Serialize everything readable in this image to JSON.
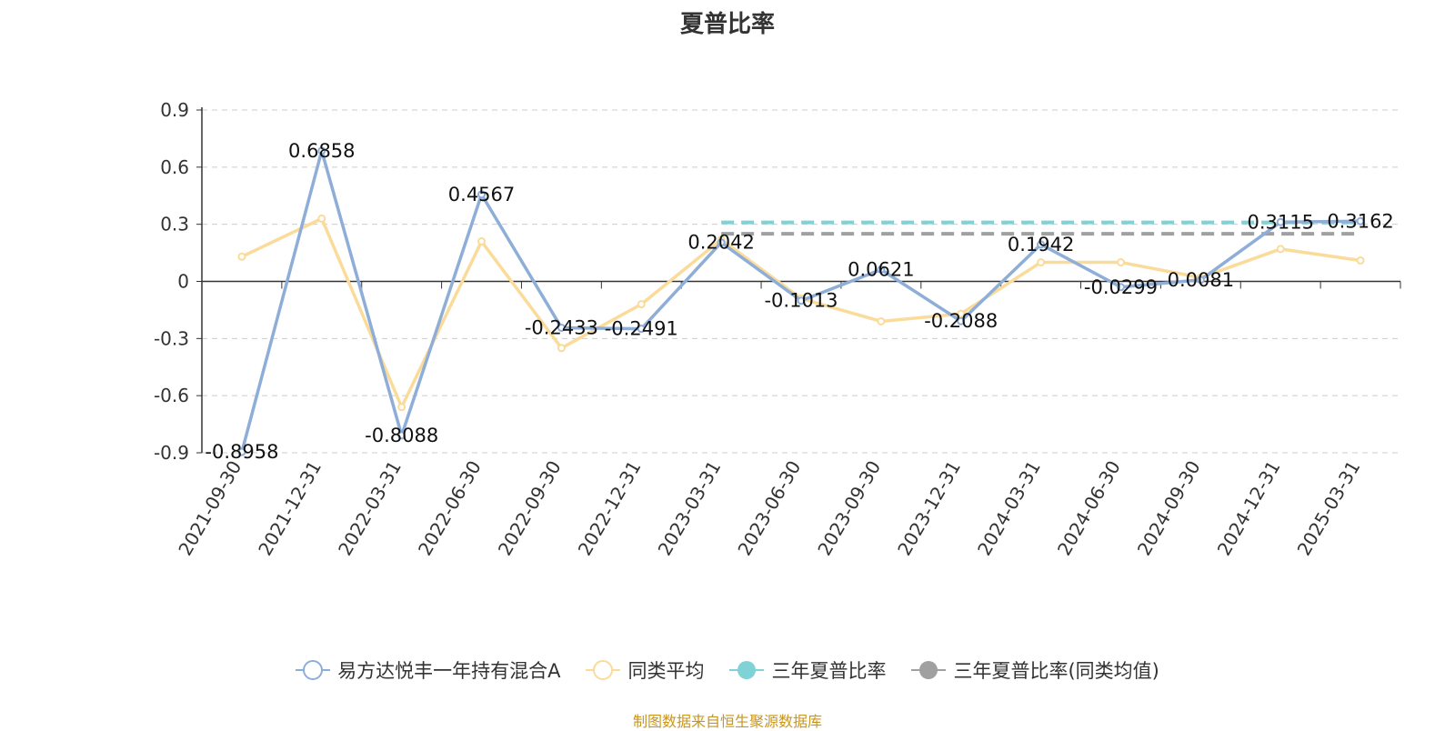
{
  "chart_data": {
    "type": "line",
    "title": "夏普比率",
    "x": [
      "2021-09-30",
      "2021-12-31",
      "2022-03-31",
      "2022-06-30",
      "2022-09-30",
      "2022-12-31",
      "2023-03-31",
      "2023-06-30",
      "2023-09-30",
      "2023-12-31",
      "2024-03-31",
      "2024-06-30",
      "2024-09-30",
      "2024-12-31",
      "2025-03-31"
    ],
    "ylim": [
      -0.9,
      0.9
    ],
    "yticks": [
      "0.9",
      "0.6",
      "0.3",
      "0",
      "-0.3",
      "-0.6",
      "-0.9"
    ],
    "grid": true,
    "legend_position": "bottom",
    "series": [
      {
        "name": "易方达悦丰一年持有混合A",
        "color": "#8eaed8",
        "values": [
          -0.8958,
          0.6858,
          -0.8088,
          0.4567,
          -0.2433,
          -0.2491,
          0.2042,
          -0.1013,
          0.0621,
          -0.2088,
          0.1942,
          -0.0299,
          0.0081,
          0.3115,
          0.3162
        ],
        "labels": [
          "-0.8958",
          "0.6858",
          "-0.8088",
          "0.4567",
          "-0.2433",
          "-0.2491",
          "0.2042",
          "-0.1013",
          "0.0621",
          "-0.2088",
          "0.1942",
          "-0.0299",
          "0.0081",
          "0.3115",
          "0.3162"
        ]
      },
      {
        "name": "同类平均",
        "color": "#fadb9a",
        "values": [
          0.13,
          0.33,
          -0.66,
          0.21,
          -0.35,
          -0.12,
          0.22,
          -0.09,
          -0.21,
          -0.17,
          0.1,
          0.1,
          0.02,
          0.17,
          0.11
        ]
      },
      {
        "name": "三年夏普比率",
        "color": "#7fd3d6",
        "dashed": true,
        "from_index": 6,
        "to_index": 14,
        "value": 0.31
      },
      {
        "name": "三年夏普比率(同类均值)",
        "color": "#a0a0a0",
        "dashed": true,
        "from_index": 6,
        "to_index": 14,
        "value": 0.25
      }
    ]
  },
  "source_note": "制图数据来自恒生聚源数据库"
}
